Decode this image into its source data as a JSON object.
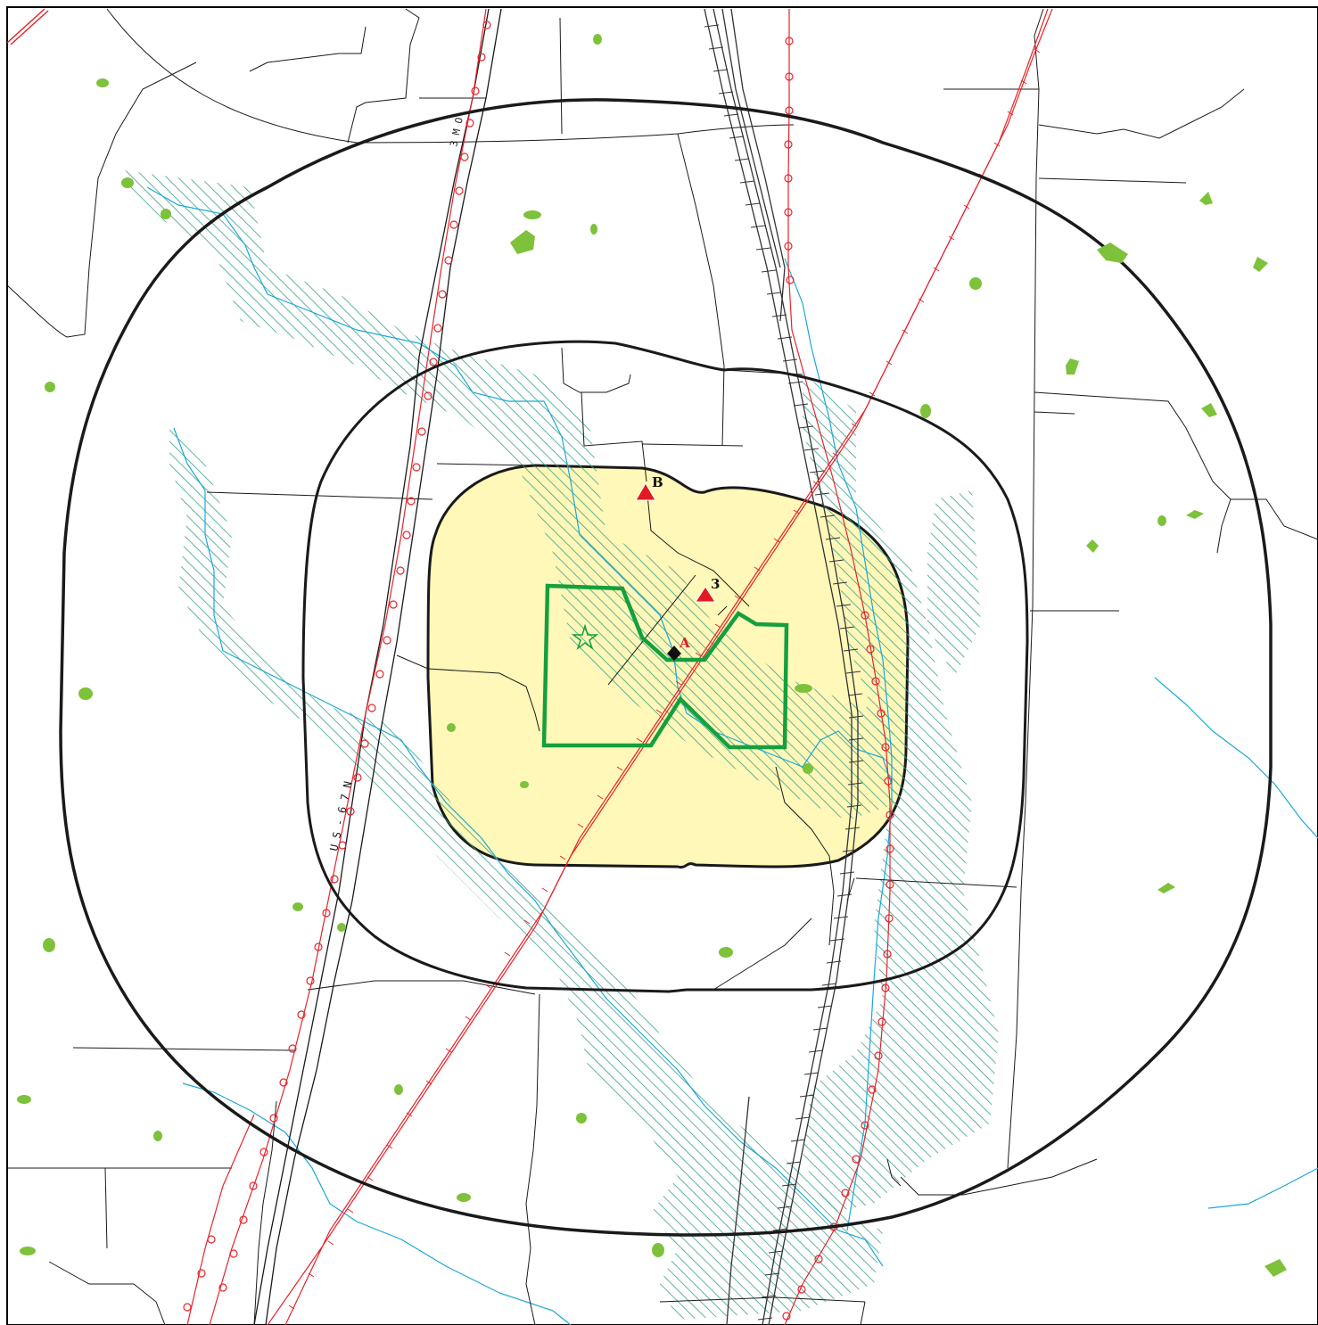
{
  "map": {
    "route_label": "U S - 6 7 N",
    "route_label_top": "3 M O",
    "markers": {
      "site_a": "A",
      "site_b": "B",
      "site_3": "3"
    },
    "colors": {
      "ring": "#1a1a1a",
      "inner_zone_fill": "#fff8b8",
      "boundary": "#14a03c",
      "wetland_hatch": "#3aa08a",
      "stream": "#1aa8d8",
      "pipeline": "#e6242b",
      "railroad": "#333333",
      "road": "#1a1a1a",
      "vegetation": "#7dc23a",
      "marker_triangle": "#e01b24",
      "marker_diamond": "#111111"
    }
  }
}
